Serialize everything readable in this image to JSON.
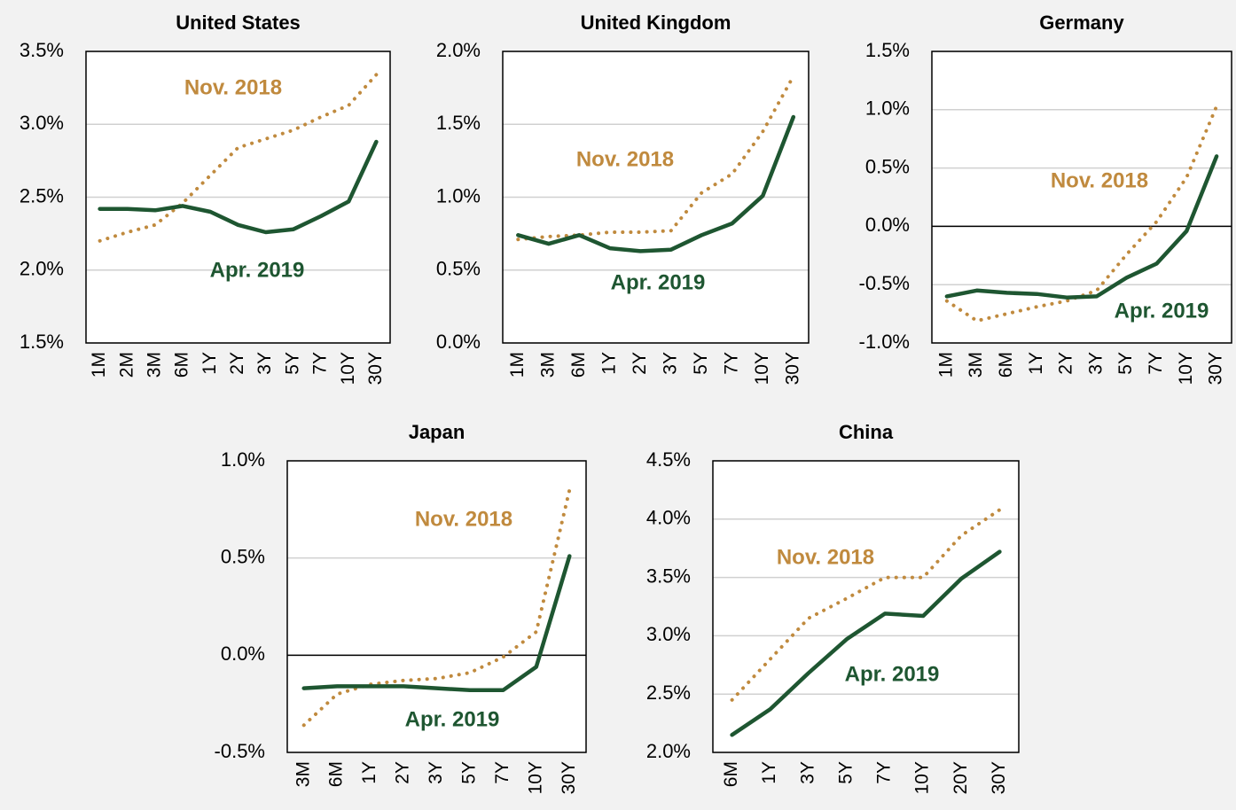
{
  "chart_data": [
    {
      "type": "line",
      "title": "United States",
      "categories": [
        "1M",
        "2M",
        "3M",
        "6M",
        "1Y",
        "2Y",
        "3Y",
        "5Y",
        "7Y",
        "10Y",
        "30Y"
      ],
      "series": [
        {
          "name": "Nov. 2018",
          "color": "#c08a3e",
          "style": "dotted",
          "values": [
            2.2,
            2.26,
            2.31,
            2.46,
            2.65,
            2.84,
            2.9,
            2.96,
            3.05,
            3.13,
            3.34
          ]
        },
        {
          "name": "Apr. 2019",
          "color": "#1e5631",
          "style": "solid",
          "values": [
            2.42,
            2.42,
            2.41,
            2.44,
            2.4,
            2.31,
            2.26,
            2.28,
            2.37,
            2.47,
            2.88
          ]
        }
      ],
      "ylim": [
        1.5,
        3.5
      ],
      "yticks": [
        {
          "value": 1.5,
          "label": "1.5%"
        },
        {
          "value": 2.0,
          "label": "2.0%"
        },
        {
          "value": 2.5,
          "label": "2.5%"
        },
        {
          "value": 3.0,
          "label": "3.0%"
        },
        {
          "value": 3.5,
          "label": "3.5%"
        }
      ],
      "grid": true
    },
    {
      "type": "line",
      "title": "United Kingdom",
      "categories": [
        "1M",
        "3M",
        "6M",
        "1Y",
        "2Y",
        "3Y",
        "5Y",
        "7Y",
        "10Y",
        "30Y"
      ],
      "series": [
        {
          "name": "Nov. 2018",
          "color": "#c08a3e",
          "style": "dotted",
          "values": [
            0.71,
            0.73,
            0.74,
            0.76,
            0.76,
            0.77,
            1.03,
            1.16,
            1.45,
            1.83
          ]
        },
        {
          "name": "Apr. 2019",
          "color": "#1e5631",
          "style": "solid",
          "values": [
            0.74,
            0.68,
            0.74,
            0.65,
            0.63,
            0.64,
            0.74,
            0.82,
            1.01,
            1.55
          ]
        }
      ],
      "ylim": [
        0,
        2.0
      ],
      "yticks": [
        {
          "value": 0,
          "label": "0.0%"
        },
        {
          "value": 0.5,
          "label": "0.5%"
        },
        {
          "value": 1.0,
          "label": "1.0%"
        },
        {
          "value": 1.5,
          "label": "1.5%"
        },
        {
          "value": 2.0,
          "label": "2.0%"
        }
      ],
      "grid": true
    },
    {
      "type": "line",
      "title": "Germany",
      "categories": [
        "1M",
        "3M",
        "6M",
        "1Y",
        "2Y",
        "3Y",
        "5Y",
        "7Y",
        "10Y",
        "30Y"
      ],
      "series": [
        {
          "name": "Nov. 2018",
          "color": "#c08a3e",
          "style": "dotted",
          "values": [
            -0.64,
            -0.81,
            -0.75,
            -0.69,
            -0.64,
            -0.55,
            -0.24,
            0.04,
            0.42,
            1.03
          ]
        },
        {
          "name": "Apr. 2019",
          "color": "#1e5631",
          "style": "solid",
          "values": [
            -0.6,
            -0.55,
            -0.57,
            -0.58,
            -0.61,
            -0.6,
            -0.44,
            -0.32,
            -0.04,
            0.6
          ]
        }
      ],
      "ylim": [
        -1.0,
        1.5
      ],
      "yticks": [
        {
          "value": -1.0,
          "label": "-1.0%"
        },
        {
          "value": -0.5,
          "label": "-0.5%"
        },
        {
          "value": 0,
          "label": "0.0%"
        },
        {
          "value": 0.5,
          "label": "0.5%"
        },
        {
          "value": 1.0,
          "label": "1.0%"
        },
        {
          "value": 1.5,
          "label": "1.5%"
        }
      ],
      "grid": true
    },
    {
      "type": "line",
      "title": "Japan",
      "categories": [
        "3M",
        "6M",
        "1Y",
        "2Y",
        "3Y",
        "5Y",
        "7Y",
        "10Y",
        "30Y"
      ],
      "series": [
        {
          "name": "Nov. 2018",
          "color": "#c08a3e",
          "style": "dotted",
          "values": [
            -0.36,
            -0.2,
            -0.15,
            -0.13,
            -0.12,
            -0.09,
            -0.01,
            0.12,
            0.85
          ]
        },
        {
          "name": "Apr. 2019",
          "color": "#1e5631",
          "style": "solid",
          "values": [
            -0.17,
            -0.16,
            -0.16,
            -0.16,
            -0.17,
            -0.18,
            -0.18,
            -0.06,
            0.51
          ]
        }
      ],
      "ylim": [
        -0.5,
        1.0
      ],
      "yticks": [
        {
          "value": -0.5,
          "label": "-0.5%"
        },
        {
          "value": 0,
          "label": "0.0%"
        },
        {
          "value": 0.5,
          "label": "0.5%"
        },
        {
          "value": 1.0,
          "label": "1.0%"
        }
      ],
      "grid": true
    },
    {
      "type": "line",
      "title": "China",
      "categories": [
        "6M",
        "1Y",
        "3Y",
        "5Y",
        "7Y",
        "10Y",
        "20Y",
        "30Y"
      ],
      "series": [
        {
          "name": "Nov. 2018",
          "color": "#c08a3e",
          "style": "dotted",
          "values": [
            2.45,
            2.8,
            3.15,
            3.32,
            3.5,
            3.5,
            3.86,
            4.08
          ]
        },
        {
          "name": "Apr. 2019",
          "color": "#1e5631",
          "style": "solid",
          "values": [
            2.15,
            2.37,
            2.68,
            2.97,
            3.19,
            3.17,
            3.49,
            3.72
          ]
        }
      ],
      "ylim": [
        2.0,
        4.5
      ],
      "yticks": [
        {
          "value": 2.0,
          "label": "2.0%"
        },
        {
          "value": 2.5,
          "label": "2.5%"
        },
        {
          "value": 3.0,
          "label": "3.0%"
        },
        {
          "value": 3.5,
          "label": "3.5%"
        },
        {
          "value": 4.0,
          "label": "4.0%"
        },
        {
          "value": 4.5,
          "label": "4.5%"
        }
      ],
      "grid": true
    }
  ]
}
